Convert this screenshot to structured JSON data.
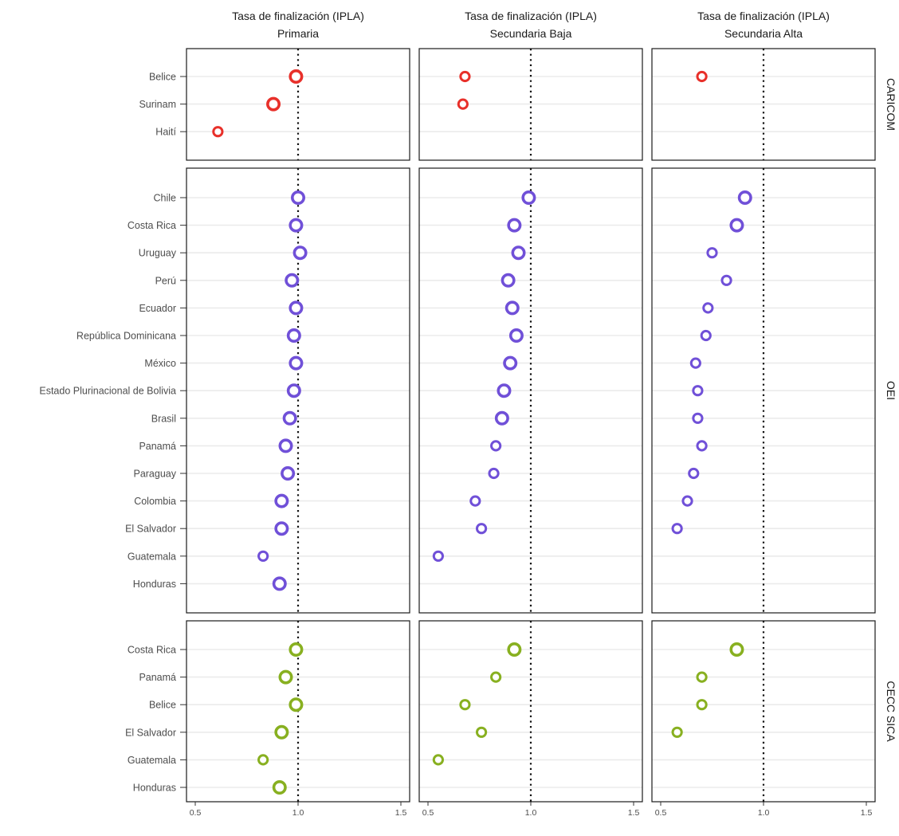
{
  "chart_data": {
    "type": "scatter",
    "columns": [
      {
        "title_line1": "Tasa de finalización (IPLA)",
        "title_line2": "Primaria"
      },
      {
        "title_line1": "Tasa de finalización (IPLA)",
        "title_line2": "Secundaria Baja"
      },
      {
        "title_line1": "Tasa de finalización (IPLA)",
        "title_line2": "Secundaria Alta"
      }
    ],
    "x_ticks": [
      "0.5",
      "1.0",
      "1.5"
    ],
    "xlim": [
      0.5,
      1.5
    ],
    "reference_line": 1.0,
    "grid": true,
    "panels": [
      {
        "label": "CARICOM",
        "color": "#e8302a",
        "countries": [
          "Belice",
          "Surinam",
          "Haití"
        ],
        "values": [
          [
            0.99,
            0.68,
            0.7
          ],
          [
            0.88,
            0.67,
            null
          ],
          [
            0.61,
            null,
            null
          ]
        ]
      },
      {
        "label": "OEI",
        "color": "#7050d8",
        "countries": [
          "Chile",
          "Costa Rica",
          "Uruguay",
          "Perú",
          "Ecuador",
          "República Dominicana",
          "México",
          "Estado Plurinacional de Bolivia",
          "Brasil",
          "Panamá",
          "Paraguay",
          "Colombia",
          "El Salvador",
          "Guatemala",
          "Honduras"
        ],
        "values": [
          [
            1.0,
            0.99,
            0.91
          ],
          [
            0.99,
            0.92,
            0.87
          ],
          [
            1.01,
            0.94,
            0.75
          ],
          [
            0.97,
            0.89,
            0.82
          ],
          [
            0.99,
            0.91,
            0.73
          ],
          [
            0.98,
            0.93,
            0.72
          ],
          [
            0.99,
            0.9,
            0.67
          ],
          [
            0.98,
            0.87,
            0.68
          ],
          [
            0.96,
            0.86,
            0.68
          ],
          [
            0.94,
            0.83,
            0.7
          ],
          [
            0.95,
            0.82,
            0.66
          ],
          [
            0.92,
            0.73,
            0.63
          ],
          [
            0.92,
            0.76,
            0.58
          ],
          [
            0.83,
            0.55,
            null
          ],
          [
            0.91,
            null,
            null
          ]
        ]
      },
      {
        "label": "CECC SICA",
        "color": "#88b020",
        "countries": [
          "Costa Rica",
          "Panamá",
          "Belice",
          "El Salvador",
          "Guatemala",
          "Honduras"
        ],
        "values": [
          [
            0.99,
            0.92,
            0.87
          ],
          [
            0.94,
            0.83,
            0.7
          ],
          [
            0.99,
            0.68,
            0.7
          ],
          [
            0.92,
            0.76,
            0.58
          ],
          [
            0.83,
            0.55,
            null
          ],
          [
            0.91,
            null,
            null
          ]
        ]
      }
    ]
  }
}
